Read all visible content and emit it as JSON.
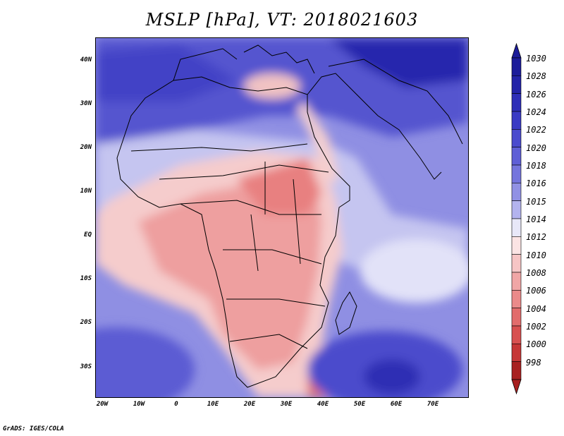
{
  "title": "MSLP [hPa], VT: 2018021603",
  "footer": "GrADS: IGES/COLA",
  "lat_labels": [
    "40N",
    "30N",
    "20N",
    "10N",
    "EQ",
    "10S",
    "20S",
    "30S"
  ],
  "lon_labels": [
    "20W",
    "10W",
    "0",
    "10E",
    "20E",
    "30E",
    "40E",
    "50E",
    "60E",
    "70E"
  ],
  "colorbar": {
    "labels": [
      "1030",
      "1028",
      "1026",
      "1024",
      "1022",
      "1020",
      "1018",
      "1016",
      "1015",
      "1014",
      "1012",
      "1010",
      "1008",
      "1006",
      "1004",
      "1002",
      "1000",
      "998"
    ],
    "colors": [
      "#1c1c9a",
      "#2323a8",
      "#2e2eb8",
      "#3a3ac4",
      "#4b4bce",
      "#5f5fd6",
      "#7575dd",
      "#9191e4",
      "#b3b3ee",
      "#e8e8f8",
      "#fbe4e4",
      "#f6c5c5",
      "#f0a6a6",
      "#ea8a8a",
      "#e26c6c",
      "#d85050",
      "#c63636",
      "#a82020"
    ]
  },
  "chart_data": {
    "type": "map",
    "title": "MSLP [hPa], VT: 2018021603",
    "variable": "MSLP",
    "units": "hPa",
    "valid_time": "2018021603",
    "lat_ticks": [
      "40N",
      "30N",
      "20N",
      "10N",
      "EQ",
      "10S",
      "20S",
      "30S"
    ],
    "lon_ticks": [
      "20W",
      "10W",
      "0",
      "10E",
      "20E",
      "30E",
      "40E",
      "50E",
      "60E",
      "70E"
    ],
    "levels": [
      998,
      1000,
      1002,
      1004,
      1006,
      1008,
      1010,
      1012,
      1014,
      1015,
      1016,
      1018,
      1020,
      1022,
      1024,
      1026,
      1028,
      1030
    ]
  }
}
